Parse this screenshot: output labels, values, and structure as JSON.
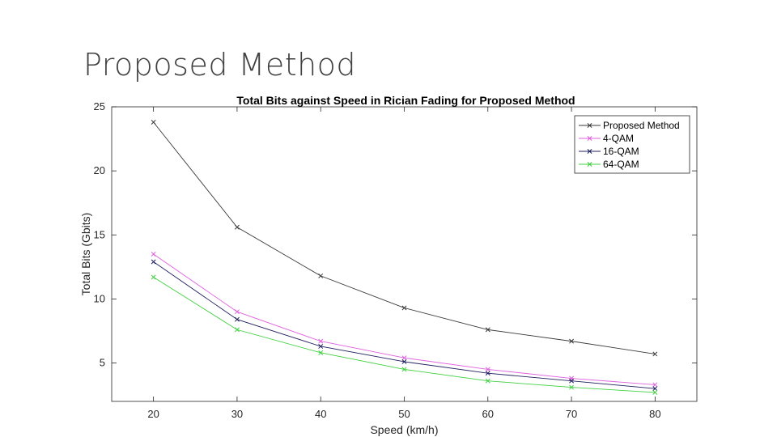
{
  "slide": {
    "title": "Proposed Method"
  },
  "chart_data": {
    "type": "line",
    "title": "Total Bits against Speed in Rician Fading for Proposed Method",
    "xlabel": "Speed (km/h)",
    "ylabel": "Total Bits (Gbits)",
    "xlim": [
      15,
      85
    ],
    "ylim": [
      2,
      25
    ],
    "xticks": [
      20,
      30,
      40,
      50,
      60,
      70,
      80
    ],
    "yticks": [
      5,
      10,
      15,
      20,
      25
    ],
    "grid": false,
    "legend_position": "top-right",
    "x": [
      20,
      30,
      40,
      50,
      60,
      70,
      80
    ],
    "series": [
      {
        "name": "Proposed Method",
        "color": "#3a3a3a",
        "marker": "x",
        "values": [
          23.8,
          15.6,
          11.8,
          9.3,
          7.6,
          6.7,
          5.7
        ]
      },
      {
        "name": "4-QAM",
        "color": "#e060e0",
        "marker": "x",
        "values": [
          13.5,
          9.0,
          6.7,
          5.4,
          4.5,
          3.8,
          3.3
        ]
      },
      {
        "name": "16-QAM",
        "color": "#202060",
        "marker": "x",
        "values": [
          12.9,
          8.4,
          6.3,
          5.1,
          4.2,
          3.6,
          3.0
        ]
      },
      {
        "name": "64-QAM",
        "color": "#40d040",
        "marker": "x",
        "values": [
          11.7,
          7.6,
          5.8,
          4.5,
          3.6,
          3.1,
          2.7
        ]
      }
    ]
  }
}
